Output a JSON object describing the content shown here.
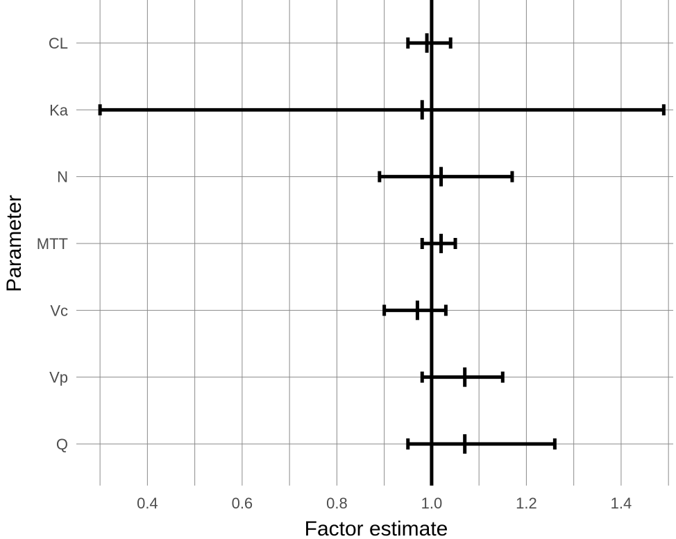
{
  "chart_data": {
    "type": "errorbar",
    "title": "",
    "xlabel": "Factor estimate",
    "ylabel": "Parameter",
    "xlim": [
      0.25,
      1.51
    ],
    "x_ticks": [
      0.4,
      0.6,
      0.8,
      1.0,
      1.2,
      1.4
    ],
    "x_tick_labels": [
      "0.4",
      "0.6",
      "0.8",
      "1.0",
      "1.2",
      "1.4"
    ],
    "reference_line": 1.0,
    "grid": true,
    "colors": {
      "marks": "#000000",
      "grid": "#8a8a8a",
      "tick_text": "#4d4d4d",
      "background": "#ffffff"
    },
    "categories": [
      "CL",
      "Ka",
      "N",
      "MTT",
      "Vc",
      "Vp",
      "Q"
    ],
    "points": [
      {
        "category": "CL",
        "estimate": 0.99,
        "lower": 0.95,
        "upper": 1.04
      },
      {
        "category": "Ka",
        "estimate": 0.98,
        "lower": 0.3,
        "upper": 1.49
      },
      {
        "category": "N",
        "estimate": 1.02,
        "lower": 0.89,
        "upper": 1.17
      },
      {
        "category": "MTT",
        "estimate": 1.02,
        "lower": 0.98,
        "upper": 1.05
      },
      {
        "category": "Vc",
        "estimate": 0.97,
        "lower": 0.9,
        "upper": 1.03
      },
      {
        "category": "Vp",
        "estimate": 1.07,
        "lower": 0.98,
        "upper": 1.15
      },
      {
        "category": "Q",
        "estimate": 1.07,
        "lower": 0.95,
        "upper": 1.26
      }
    ]
  }
}
